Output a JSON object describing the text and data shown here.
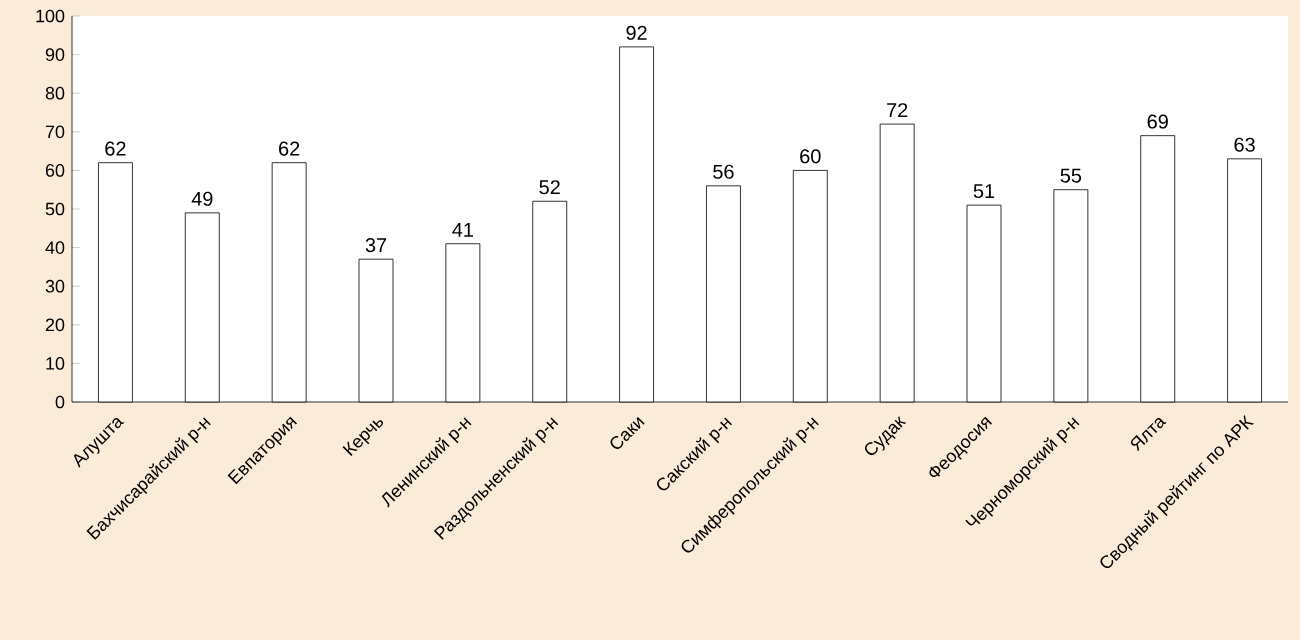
{
  "chart_data": {
    "type": "bar",
    "categories": [
      "Алушта",
      "Бахчисарайский р-н",
      "Евпатория",
      "Керчь",
      "Ленинский р-н",
      "Раздольненский р-н",
      "Саки",
      "Сакский р-н",
      "Симферопольский р-н",
      "Судак",
      "Феодосия",
      "Черноморский р-н",
      "Ялта",
      "Сводный рейтинг по АРК"
    ],
    "values": [
      62,
      49,
      62,
      37,
      41,
      52,
      92,
      56,
      60,
      72,
      51,
      55,
      69,
      63
    ],
    "color": "#ffffff",
    "ylim": [
      0,
      100
    ],
    "yticks": [
      0,
      10,
      20,
      30,
      40,
      50,
      60,
      70,
      80,
      90,
      100
    ],
    "data_labels": true,
    "grid": false
  }
}
